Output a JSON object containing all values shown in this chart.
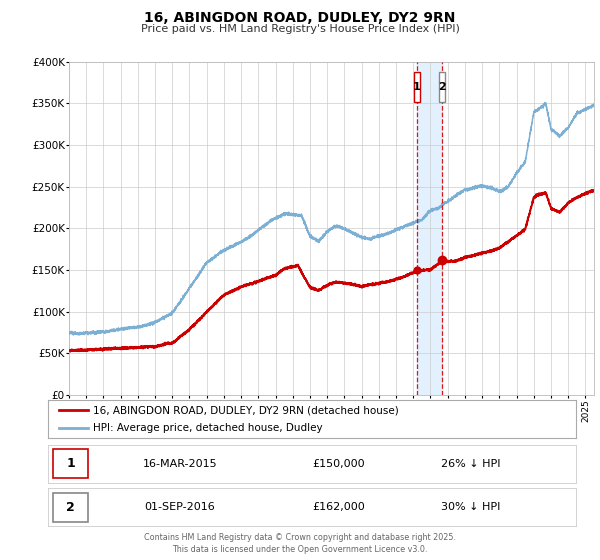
{
  "title": "16, ABINGDON ROAD, DUDLEY, DY2 9RN",
  "subtitle": "Price paid vs. HM Land Registry's House Price Index (HPI)",
  "legend_red": "16, ABINGDON ROAD, DUDLEY, DY2 9RN (detached house)",
  "legend_blue": "HPI: Average price, detached house, Dudley",
  "annotation1_date": 2015.21,
  "annotation1_label": "1",
  "annotation1_price": 150000,
  "annotation1_text": "16-MAR-2015",
  "annotation1_val": "£150,000",
  "annotation1_hpi": "26% ↓ HPI",
  "annotation2_date": 2016.67,
  "annotation2_label": "2",
  "annotation2_price": 162000,
  "annotation2_text": "01-SEP-2016",
  "annotation2_val": "£162,000",
  "annotation2_hpi": "30% ↓ HPI",
  "footer_line1": "Contains HM Land Registry data © Crown copyright and database right 2025.",
  "footer_line2": "This data is licensed under the Open Government Licence v3.0.",
  "background_color": "#ffffff",
  "plot_bg_color": "#ffffff",
  "grid_color": "#cccccc",
  "red_color": "#cc0000",
  "blue_color": "#7bafd4",
  "shade_color": "#ddeeff",
  "vline_color": "#dd0000",
  "ylim": [
    0,
    400000
  ],
  "yticks": [
    0,
    50000,
    100000,
    150000,
    200000,
    250000,
    300000,
    350000,
    400000
  ],
  "xlim_start": 1995.0,
  "xlim_end": 2025.5
}
